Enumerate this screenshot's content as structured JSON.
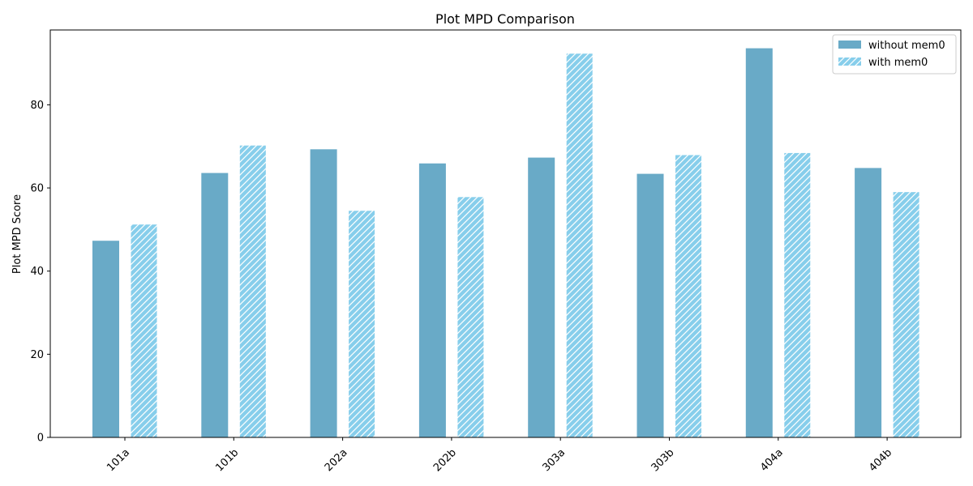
{
  "chart_data": {
    "type": "bar",
    "title": "Plot MPD Comparison",
    "xlabel": "",
    "ylabel": "Plot MPD Score",
    "categories": [
      "101a",
      "101b",
      "202a",
      "202b",
      "303a",
      "303b",
      "404a",
      "404b"
    ],
    "series": [
      {
        "name": "without mem0",
        "values": [
          47.3,
          63.6,
          69.3,
          65.9,
          67.3,
          63.4,
          93.6,
          64.8
        ],
        "color": "#69aac7",
        "hatch": false
      },
      {
        "name": "with mem0",
        "values": [
          51.3,
          70.3,
          54.6,
          57.9,
          92.4,
          68.0,
          68.5,
          59.1
        ],
        "color": "#87ceeb",
        "hatch": true
      }
    ],
    "ylim": [
      0,
      98
    ],
    "yticks": [
      0,
      20,
      40,
      60,
      80
    ],
    "legend": "top-right",
    "grid": false
  }
}
